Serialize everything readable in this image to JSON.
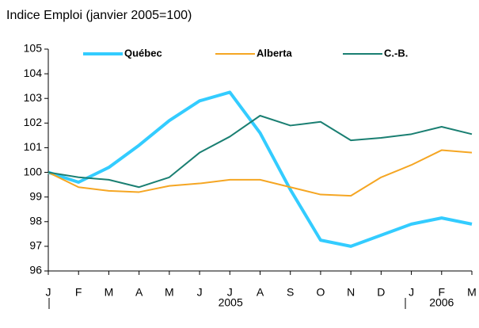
{
  "chart_data": {
    "type": "line",
    "title": "Indice Emploi (janvier 2005=100)",
    "categories": [
      "J",
      "F",
      "M",
      "A",
      "M",
      "J",
      "J",
      "A",
      "S",
      "O",
      "N",
      "D",
      "J",
      "F",
      "M"
    ],
    "year_labels": [
      "2005",
      "2006"
    ],
    "series": [
      {
        "name": "Québec",
        "color": "#33ccff",
        "values": [
          100,
          99.6,
          100.2,
          101.1,
          102.1,
          102.9,
          103.25,
          101.6,
          99.3,
          97.25,
          97.0,
          97.45,
          97.9,
          98.15,
          97.9
        ]
      },
      {
        "name": "Alberta",
        "color": "#f5a623",
        "values": [
          100,
          99.4,
          99.25,
          99.2,
          99.45,
          99.55,
          99.7,
          99.7,
          99.4,
          99.1,
          99.05,
          99.8,
          100.3,
          100.9,
          100.8
        ]
      },
      {
        "name": "C.-B.",
        "color": "#1a7f72",
        "values": [
          100,
          99.8,
          99.7,
          99.4,
          99.8,
          100.8,
          101.45,
          102.3,
          101.9,
          102.05,
          101.3,
          101.4,
          101.55,
          101.85,
          101.55
        ]
      }
    ],
    "ylim": [
      96,
      105
    ],
    "yticks": [
      96,
      97,
      98,
      99,
      100,
      101,
      102,
      103,
      104,
      105
    ]
  }
}
